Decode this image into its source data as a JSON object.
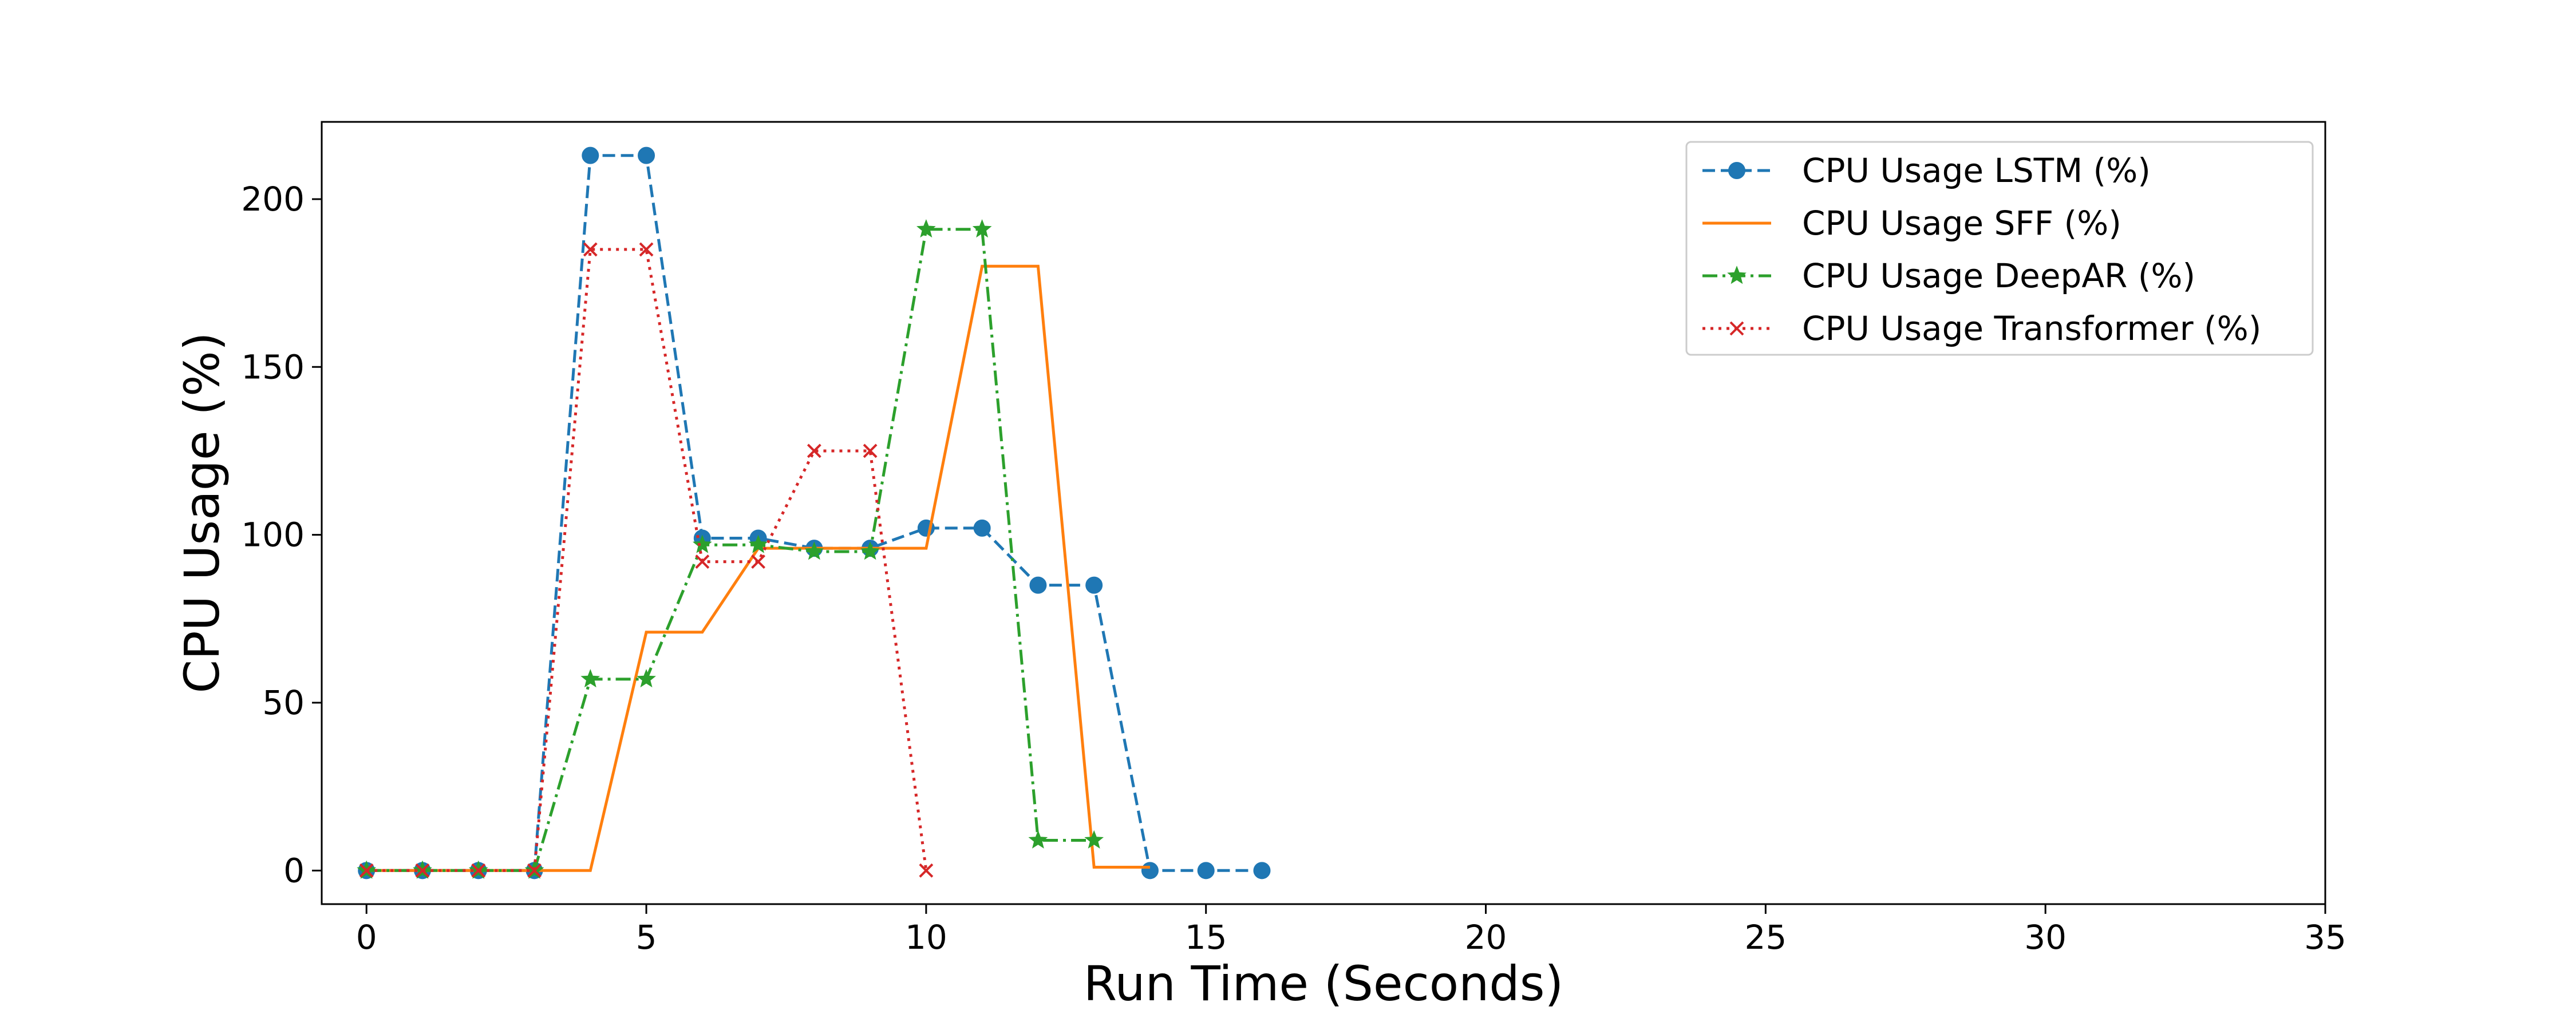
{
  "chart_data": {
    "type": "line",
    "title": "",
    "xlabel": "Run Time (Seconds)",
    "ylabel": "CPU Usage (%)",
    "xlim": [
      -0.8,
      35
    ],
    "ylim": [
      -10,
      223
    ],
    "xticks": [
      0,
      5,
      10,
      15,
      20,
      25,
      30,
      35
    ],
    "yticks": [
      0,
      50,
      100,
      150,
      200
    ],
    "grid": false,
    "legend_position": "top-right",
    "series": [
      {
        "name": "CPU Usage LSTM (%)",
        "color": "#1f77b4",
        "linestyle": "dashed",
        "marker": "circle",
        "x": [
          0,
          1,
          2,
          3,
          4,
          5,
          6,
          7,
          8,
          9,
          10,
          11,
          12,
          13,
          14,
          15,
          16
        ],
        "y": [
          0,
          0,
          0,
          0,
          213,
          213,
          99,
          99,
          96,
          96,
          102,
          102,
          85,
          85,
          0,
          0,
          0
        ]
      },
      {
        "name": "CPU Usage SFF (%)",
        "color": "#ff7f0e",
        "linestyle": "solid",
        "marker": "none",
        "x": [
          0,
          1,
          2,
          3,
          4,
          5,
          6,
          7,
          8,
          9,
          10,
          11,
          12,
          13,
          14
        ],
        "y": [
          0,
          0,
          0,
          0,
          0,
          71,
          71,
          96,
          96,
          96,
          96,
          180,
          180,
          1,
          1
        ]
      },
      {
        "name": "CPU Usage DeepAR (%)",
        "color": "#2ca02c",
        "linestyle": "dashdot",
        "marker": "star",
        "x": [
          0,
          1,
          2,
          3,
          4,
          5,
          6,
          7,
          8,
          9,
          10,
          11,
          12,
          13
        ],
        "y": [
          0,
          0,
          0,
          0,
          57,
          57,
          97,
          97,
          95,
          95,
          191,
          191,
          9,
          9
        ]
      },
      {
        "name": "CPU Usage Transformer (%)",
        "color": "#d62728",
        "linestyle": "dotted",
        "marker": "x",
        "x": [
          0,
          1,
          2,
          3,
          4,
          5,
          6,
          7,
          8,
          9,
          10
        ],
        "y": [
          0,
          0,
          0,
          0,
          185,
          185,
          92,
          92,
          125,
          125,
          0
        ]
      }
    ]
  }
}
